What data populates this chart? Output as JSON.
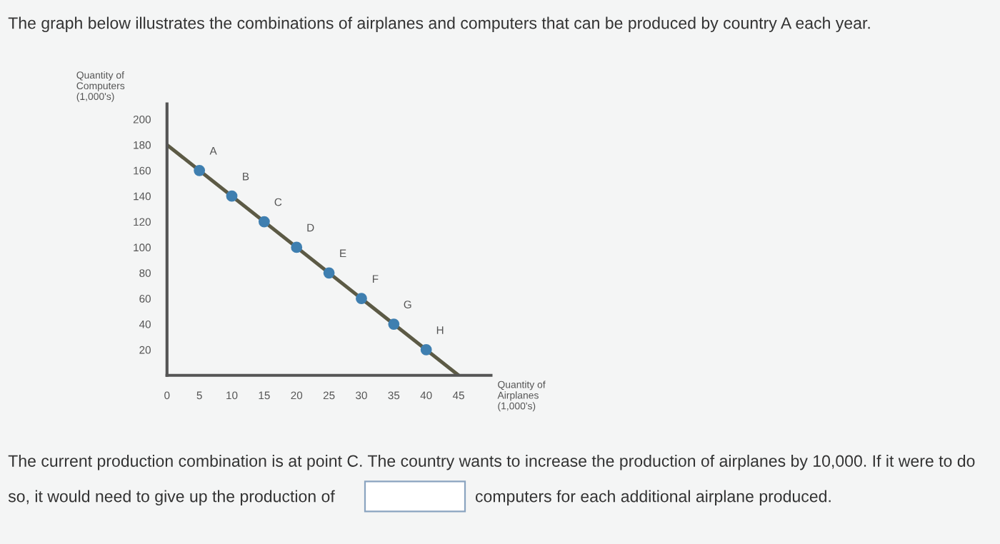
{
  "chart_data": {
    "type": "line",
    "title": "The graph below illustrates the combinations of airplanes and computers that can be produced by country A each year.",
    "xlabel": "Quantity of\nAirplanes\n(1,000's)",
    "ylabel": "Quantity of\nComputers\n(1,000's)",
    "series": [
      {
        "color": "#5c5a45",
        "x": [
          0,
          45
        ],
        "values": [
          180,
          0
        ],
        "marker": "none"
      },
      {
        "type": "scatter",
        "color": "#3f7fb0",
        "x": [
          5,
          10,
          15,
          20,
          25,
          30,
          35,
          40
        ],
        "values": [
          160,
          140,
          120,
          100,
          80,
          60,
          40,
          20
        ],
        "marker": "circle"
      }
    ],
    "xlim": [
      0,
      50
    ],
    "xticks": [
      0,
      5,
      10,
      15,
      20,
      25,
      30,
      35,
      40,
      45
    ],
    "ylim": [
      0,
      212
    ],
    "yticks": [
      20,
      40,
      60,
      80,
      100,
      120,
      140,
      160,
      180,
      200
    ],
    "grid": false,
    "legend": false,
    "annotations": [
      {
        "text": "A",
        "x": 5,
        "y": 160
      },
      {
        "text": "B",
        "x": 10,
        "y": 140
      },
      {
        "text": "C",
        "x": 15,
        "y": 120
      },
      {
        "text": "D",
        "x": 20,
        "y": 100
      },
      {
        "text": "E",
        "x": 25,
        "y": 80
      },
      {
        "text": "F",
        "x": 30,
        "y": 60
      },
      {
        "text": "G",
        "x": 35,
        "y": 40
      },
      {
        "text": "H",
        "x": 40,
        "y": 20
      },
      "The current production combination is at point C. The country wants to increase the production of airplanes by 10,000. If it were to do",
      "so, it would need to give up the production of",
      "computers for each additional airplane produced."
    ]
  }
}
